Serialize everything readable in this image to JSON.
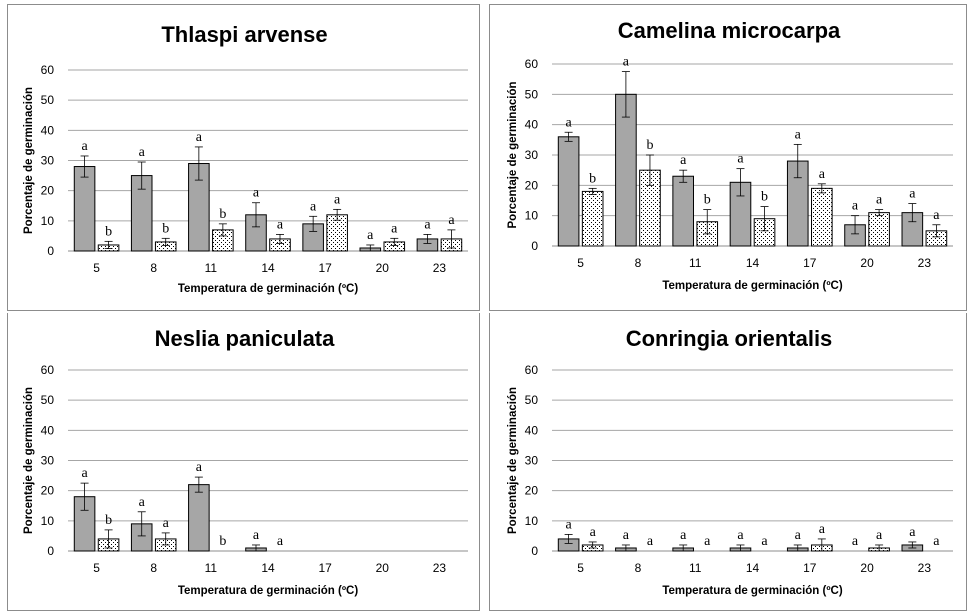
{
  "chart_data": [
    {
      "type": "bar",
      "title": "Thlaspi arvense",
      "xlabel": "Temperatura de germinación (ºC)",
      "ylabel": "Porcentaje de germinación",
      "ylim": [
        0,
        60
      ],
      "yticks": [
        "0",
        "10",
        "20",
        "30",
        "40",
        "50",
        "60"
      ],
      "categories": [
        "5",
        "8",
        "11",
        "14",
        "17",
        "20",
        "23"
      ],
      "grid": true,
      "series": [
        {
          "fill": "gray",
          "values": [
            28,
            25,
            29,
            12,
            9,
            1,
            4
          ],
          "errors": [
            3.5,
            4.5,
            5.5,
            4,
            2.5,
            1,
            1.5
          ],
          "letters": [
            "a",
            "a",
            "a",
            "a",
            "a",
            "a",
            "a"
          ]
        },
        {
          "fill": "dotted",
          "values": [
            2,
            3,
            7,
            4,
            12,
            3,
            4
          ],
          "errors": [
            1.2,
            1.2,
            2,
            1.5,
            1.8,
            1.2,
            3
          ],
          "letters": [
            "b",
            "b",
            "b",
            "a",
            "a",
            "a",
            "a"
          ]
        }
      ]
    },
    {
      "type": "bar",
      "title": "Camelina microcarpa",
      "xlabel": "Temperatura de germinación (ºC)",
      "ylabel": "Porcentaje de germinación",
      "ylim": [
        0,
        60
      ],
      "yticks": [
        "0",
        "10",
        "20",
        "30",
        "40",
        "50",
        "60"
      ],
      "categories": [
        "5",
        "8",
        "11",
        "14",
        "17",
        "20",
        "23"
      ],
      "grid": true,
      "series": [
        {
          "fill": "gray",
          "values": [
            36,
            50,
            23,
            21,
            28,
            7,
            11
          ],
          "errors": [
            1.5,
            7.5,
            2,
            4.5,
            5.5,
            3,
            3
          ],
          "letters": [
            "a",
            "a",
            "a",
            "a",
            "a",
            "a",
            "a"
          ]
        },
        {
          "fill": "dotted",
          "values": [
            18,
            25,
            8,
            9,
            19,
            11,
            5
          ],
          "errors": [
            1,
            5,
            4,
            4,
            1.5,
            1,
            2
          ],
          "letters": [
            "b",
            "b",
            "b",
            "b",
            "a",
            "a",
            "a"
          ]
        }
      ]
    },
    {
      "type": "bar",
      "title": "Neslia paniculata",
      "xlabel": "Temperatura de germinación (ºC)",
      "ylabel": "Porcentaje de germinación",
      "ylim": [
        0,
        60
      ],
      "yticks": [
        "0",
        "10",
        "20",
        "30",
        "40",
        "50",
        "60"
      ],
      "categories": [
        "5",
        "8",
        "11",
        "14",
        "17",
        "20",
        "23"
      ],
      "grid": true,
      "series": [
        {
          "fill": "gray",
          "values": [
            18,
            9,
            22,
            1,
            0,
            0,
            0
          ],
          "errors": [
            4.5,
            4,
            2.5,
            1,
            0,
            0,
            0
          ],
          "letters": [
            "a",
            "a",
            "a",
            "a",
            "",
            "",
            ""
          ]
        },
        {
          "fill": "dotted",
          "values": [
            4,
            4,
            0,
            0,
            0,
            0,
            0
          ],
          "errors": [
            3,
            2,
            0,
            0,
            0,
            0,
            0
          ],
          "letters": [
            "b",
            "a",
            "b",
            "a",
            "",
            "",
            ""
          ]
        }
      ]
    },
    {
      "type": "bar",
      "title": "Conringia orientalis",
      "xlabel": "Temperatura de germinación (ºC)",
      "ylabel": "Porcentaje de germinación",
      "ylim": [
        0,
        60
      ],
      "yticks": [
        "0",
        "10",
        "20",
        "30",
        "40",
        "50",
        "60"
      ],
      "categories": [
        "5",
        "8",
        "11",
        "14",
        "17",
        "20",
        "23"
      ],
      "grid": true,
      "series": [
        {
          "fill": "gray",
          "values": [
            4,
            1,
            1,
            1,
            1,
            0,
            2
          ],
          "errors": [
            1.5,
            1,
            1,
            1,
            1,
            0,
            1
          ],
          "letters": [
            "a",
            "a",
            "a",
            "a",
            "a",
            "a",
            "a"
          ]
        },
        {
          "fill": "dotted",
          "values": [
            2,
            0,
            0,
            0,
            2,
            1,
            0
          ],
          "errors": [
            1,
            0,
            0,
            0,
            2,
            1,
            0
          ],
          "letters": [
            "a",
            "a",
            "a",
            "a",
            "a",
            "a",
            "a"
          ]
        }
      ]
    }
  ]
}
